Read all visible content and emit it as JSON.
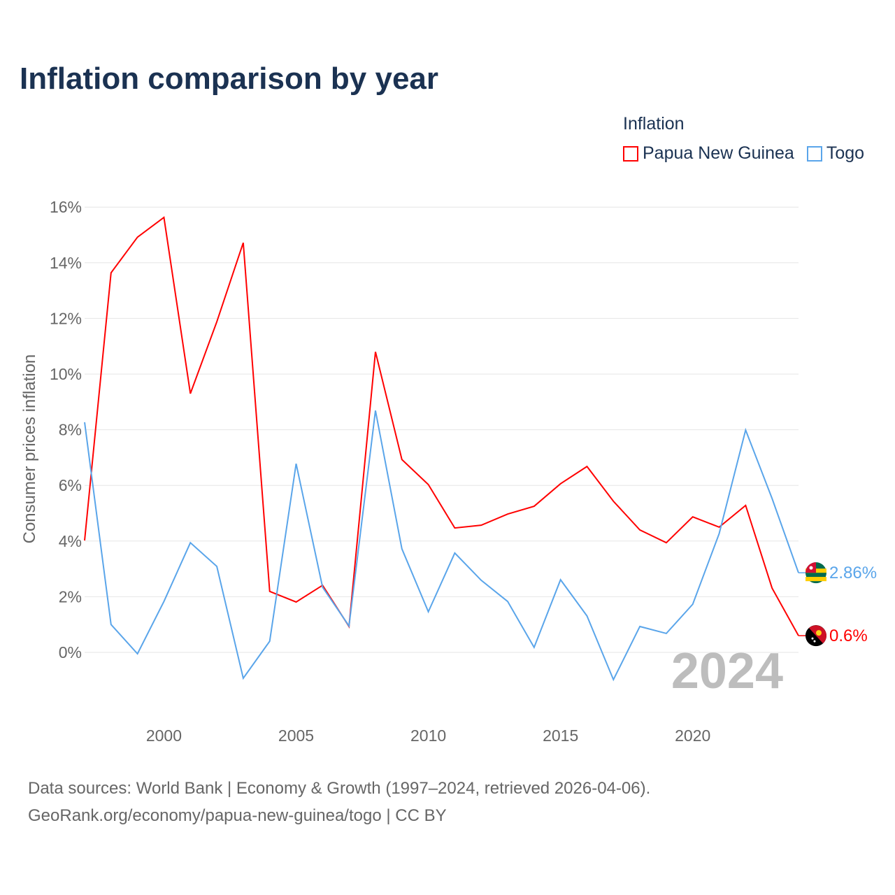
{
  "title": "Inflation comparison by year",
  "legend": {
    "title": "Inflation",
    "items": [
      {
        "label": "Papua New Guinea",
        "color": "#ff0000"
      },
      {
        "label": "Togo",
        "color": "#5aa5ea"
      }
    ]
  },
  "footer": {
    "line1": "Data sources: World Bank | Economy & Growth (1997–2024, retrieved 2026-04-06).",
    "line2": "GeoRank.org/economy/papua-new-guinea/togo | CC BY"
  },
  "chart_data": {
    "type": "line",
    "title": "Inflation comparison by year",
    "xlabel": "",
    "ylabel": "Consumer prices inflation",
    "year_watermark": "2024",
    "x": [
      1997,
      1998,
      1999,
      2000,
      2001,
      2002,
      2003,
      2004,
      2005,
      2006,
      2007,
      2008,
      2009,
      2010,
      2011,
      2012,
      2013,
      2014,
      2015,
      2016,
      2017,
      2018,
      2019,
      2020,
      2021,
      2022,
      2023,
      2024
    ],
    "xlim": [
      1997,
      2024
    ],
    "ylim": [
      -2.0,
      16
    ],
    "x_ticks": [
      2000,
      2005,
      2010,
      2015,
      2020
    ],
    "y_ticks": [
      0,
      2,
      4,
      6,
      8,
      10,
      12,
      14,
      16
    ],
    "y_tick_labels": [
      "0%",
      "2%",
      "4%",
      "6%",
      "8%",
      "10%",
      "12%",
      "14%",
      "16%"
    ],
    "grid": true,
    "series": [
      {
        "name": "Papua New Guinea",
        "color": "#ff0000",
        "end_label": "0.6%",
        "values": [
          4.02,
          13.64,
          14.92,
          15.63,
          9.3,
          11.88,
          14.72,
          2.19,
          1.81,
          2.41,
          0.93,
          10.8,
          6.93,
          6.03,
          4.47,
          4.57,
          4.97,
          5.25,
          6.06,
          6.68,
          5.43,
          4.4,
          3.94,
          4.87,
          4.5,
          5.28,
          2.31,
          0.6
        ]
      },
      {
        "name": "Togo",
        "color": "#5aa5ea",
        "end_label": "2.86%",
        "values": [
          8.27,
          1.0,
          -0.05,
          1.83,
          3.94,
          3.09,
          -0.93,
          0.4,
          6.78,
          2.34,
          0.95,
          8.69,
          3.72,
          1.46,
          3.57,
          2.59,
          1.83,
          0.18,
          2.61,
          1.31,
          -0.98,
          0.93,
          0.68,
          1.73,
          4.27,
          7.99,
          5.53,
          2.86
        ]
      }
    ]
  }
}
